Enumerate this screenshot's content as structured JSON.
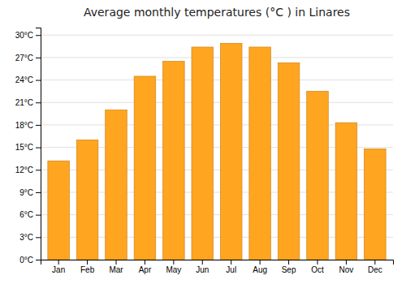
{
  "chart_data": {
    "type": "bar",
    "title": "Average monthly temperatures (°C ) in Linares",
    "categories": [
      "Jan",
      "Feb",
      "Mar",
      "Apr",
      "May",
      "Jun",
      "Jul",
      "Aug",
      "Sep",
      "Oct",
      "Nov",
      "Dec"
    ],
    "values": [
      13.2,
      16.0,
      20.0,
      24.5,
      26.5,
      28.4,
      28.9,
      28.4,
      26.3,
      22.5,
      18.3,
      14.8
    ],
    "color": "#FFA520",
    "ylim": [
      0,
      31
    ],
    "yticks": [
      {
        "value": 0,
        "label": "0°C"
      },
      {
        "value": 3,
        "label": "3°C"
      },
      {
        "value": 6,
        "label": "6°C"
      },
      {
        "value": 9,
        "label": "9°C"
      },
      {
        "value": 12,
        "label": "12°C"
      },
      {
        "value": 15,
        "label": "15°C"
      },
      {
        "value": 18,
        "label": "18°C"
      },
      {
        "value": 21,
        "label": "21°C"
      },
      {
        "value": 24,
        "label": "24°C"
      },
      {
        "value": 27,
        "label": "27°C"
      },
      {
        "value": 30,
        "label": "30°C"
      }
    ],
    "grid": true
  }
}
